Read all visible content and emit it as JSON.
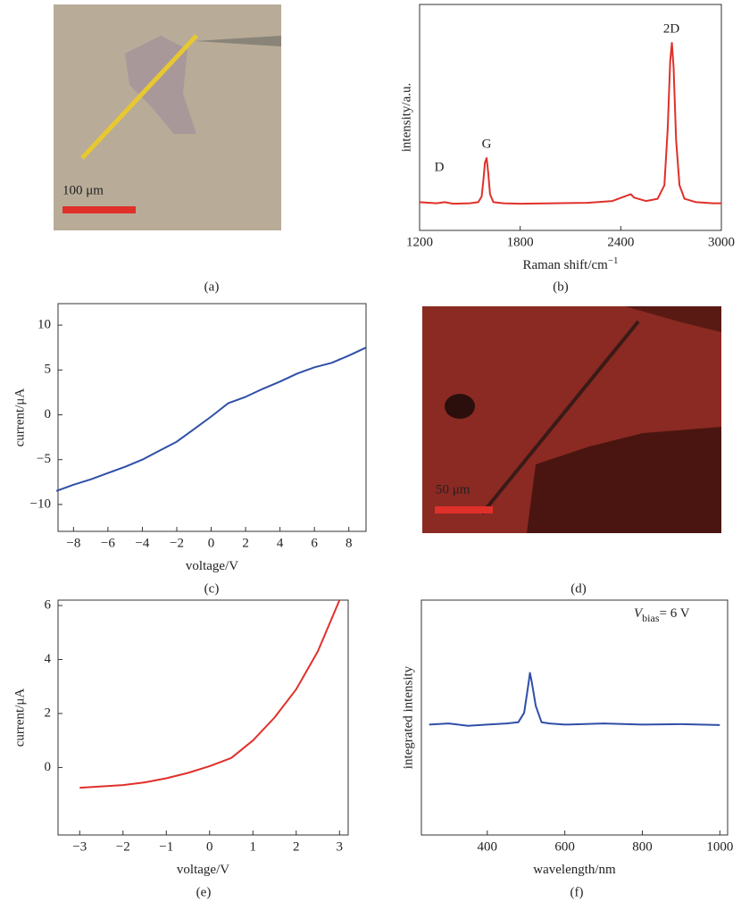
{
  "chart_data": [
    {
      "type": "image",
      "scale_bar": "100 μm",
      "caption": "(a)"
    },
    {
      "type": "line",
      "xlabel": "Raman shift/cm",
      "xlabel_sup": "−1",
      "ylabel": "intensity/a.u.",
      "caption": "(b)",
      "annotations": [
        "D",
        "G",
        "2D"
      ],
      "x": [
        1200,
        1300,
        1350,
        1400,
        1500,
        1550,
        1570,
        1580,
        1590,
        1600,
        1610,
        1620,
        1640,
        1700,
        1800,
        2000,
        2200,
        2350,
        2440,
        2460,
        2480,
        2550,
        2620,
        2660,
        2680,
        2695,
        2705,
        2715,
        2730,
        2750,
        2780,
        2850,
        2950,
        3000
      ],
      "series": [
        {
          "color": "#e0302a",
          "values": [
            12.5,
            12,
            12.5,
            11.8,
            12,
            12.5,
            15,
            22,
            30,
            32,
            25,
            16,
            12.5,
            12,
            11.8,
            12,
            12.2,
            13,
            15.5,
            16,
            14.5,
            13,
            14,
            20,
            45,
            75,
            83,
            72,
            40,
            20,
            14,
            12.5,
            12,
            12
          ]
        }
      ],
      "xlim": [
        1200,
        3000
      ],
      "xticks": [
        1200,
        1800,
        2400,
        3000
      ],
      "ylim": [
        0,
        100
      ]
    },
    {
      "type": "line",
      "xlabel": "voltage/V",
      "ylabel": "current/μA",
      "caption": "(c)",
      "x": [
        -9,
        -8,
        -7,
        -6,
        -5,
        -4,
        -3,
        -2,
        -1,
        0,
        1,
        2,
        3,
        4,
        5,
        6,
        7,
        8,
        9
      ],
      "series": [
        {
          "color": "#2f4fa8",
          "values": [
            -8.5,
            -7.8,
            -7.2,
            -6.5,
            -5.8,
            -5.0,
            -4.0,
            -3.0,
            -1.6,
            -0.2,
            1.3,
            2.0,
            2.9,
            3.7,
            4.6,
            5.3,
            5.8,
            6.6,
            7.5
          ]
        }
      ],
      "xlim": [
        -8.9,
        9
      ],
      "xticks": [
        {
          "value": -8,
          "label": "−8"
        },
        {
          "value": -6,
          "label": "−6"
        },
        {
          "value": -4,
          "label": "−4"
        },
        {
          "value": -2,
          "label": "−2"
        },
        0,
        2,
        4,
        6,
        8
      ],
      "ylim": [
        -13,
        12.4
      ],
      "yticks": [
        {
          "value": -10,
          "label": "−10"
        },
        {
          "value": -5,
          "label": "−5"
        },
        0,
        5,
        10
      ]
    },
    {
      "type": "image",
      "scale_bar": "50 μm",
      "caption": "(d)"
    },
    {
      "type": "line",
      "xlabel": "voltage/V",
      "ylabel": "current/μA",
      "caption": "(e)",
      "x": [
        -3,
        -2.5,
        -2,
        -1.5,
        -1,
        -0.5,
        0,
        0.5,
        1,
        1.5,
        2,
        2.5,
        3
      ],
      "series": [
        {
          "color": "#e0302a",
          "values": [
            -0.75,
            -0.7,
            -0.65,
            -0.55,
            -0.4,
            -0.2,
            0.05,
            0.35,
            1.0,
            1.85,
            2.9,
            4.3,
            6.2
          ]
        }
      ],
      "xlim": [
        -3.5,
        3.2
      ],
      "xticks": [
        {
          "value": -3,
          "label": "−3"
        },
        {
          "value": -2,
          "label": "−2"
        },
        {
          "value": -1,
          "label": "−1"
        },
        0,
        1,
        2,
        3
      ],
      "ylim": [
        -2.5,
        6.2
      ],
      "yticks": [
        0,
        2,
        4,
        6
      ]
    },
    {
      "type": "line",
      "xlabel": "wavelength/nm",
      "ylabel": "integrated intensity",
      "caption": "(f)",
      "annotation": {
        "symbol": "V",
        "subscript": "bias",
        "text": "= 6 V"
      },
      "x": [
        250,
        300,
        350,
        400,
        450,
        480,
        495,
        505,
        510,
        515,
        525,
        540,
        560,
        600,
        700,
        800,
        900,
        1000
      ],
      "series": [
        {
          "color": "#2f4fa8",
          "values": [
            47,
            47.5,
            46.5,
            47,
            47.5,
            48,
            52,
            63,
            69,
            65,
            55,
            48,
            47.5,
            47,
            47.5,
            47,
            47.2,
            46.8
          ]
        }
      ],
      "xlim": [
        230,
        1020
      ],
      "xticks": [
        400,
        600,
        800,
        1000
      ],
      "ylim": [
        0,
        100
      ]
    }
  ]
}
